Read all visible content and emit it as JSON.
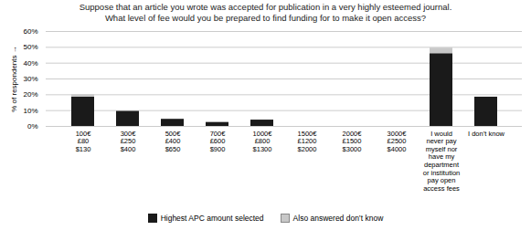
{
  "chart_data": {
    "type": "bar",
    "stacked": true,
    "title": "Suppose that an article you wrote was accepted for publication in a very highly esteemed journal.\nWhat level of fee would you be prepared to find funding for to make it open access?",
    "categories": [
      "100€\n£80\n$130",
      "300€\n£250\n$400",
      "500€\n£400\n$650",
      "700€\n£600\n$900",
      "1000€\n£800\n$1300",
      "1500€\n£1200\n$2000",
      "2000€\n£1500\n$3000",
      "3000€\n£2500\n$4000",
      "I would\nnever pay\nmyself nor\nhave my\ndepartment\nor institution\npay open\naccess fees",
      "I don’t know"
    ],
    "series": [
      {
        "name": "Highest APC amount selected",
        "color": "#1a1a1a",
        "values": [
          18.5,
          9.5,
          4.5,
          2.5,
          4.0,
          0.0,
          0.0,
          0.0,
          46.0,
          18.5
        ]
      },
      {
        "name": "Also answered don’t know",
        "color": "#c8c8c8",
        "values": [
          1.5,
          0.0,
          0.0,
          0.0,
          0.0,
          0.0,
          0.0,
          0.0,
          3.5,
          0.0
        ]
      }
    ],
    "ylabel": "% of respondents",
    "ylim": [
      0,
      60
    ],
    "yticks": [
      {
        "value": 0,
        "label": "0%"
      },
      {
        "value": 10,
        "label": "10%"
      },
      {
        "value": 20,
        "label": "20%"
      },
      {
        "value": 30,
        "label": "30%"
      },
      {
        "value": 40,
        "label": "40%"
      },
      {
        "value": 50,
        "label": "50%"
      },
      {
        "value": 60,
        "label": "60%"
      }
    ],
    "grid": true,
    "legend": "bottom"
  }
}
